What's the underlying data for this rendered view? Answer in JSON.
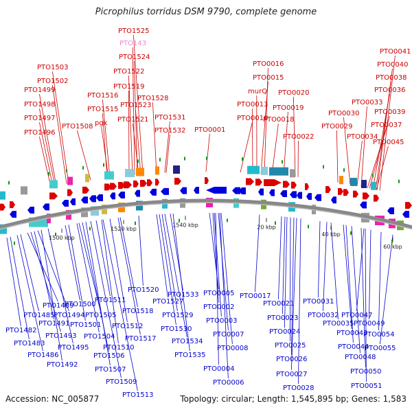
{
  "title": "Picrophilus torridus DSM 9790, complete genome",
  "footer": {
    "accession": "Accession: NC_005877",
    "summary": "Topology: circular; Length: 1,545,895 bp; Genes: 1,583"
  },
  "colors": {
    "forward": "#dd0000",
    "reverse": "#0000dd",
    "highlight": "#ee88cc",
    "backbone": "#888888"
  },
  "scale_labels": [
    "1500 kbp",
    "1520 kbp",
    "1540 kbp",
    "20 kbp",
    "40 kbp",
    "60 kbp"
  ],
  "top_labels": [
    "PTO1525",
    "PTO143",
    "PTO1524",
    "PTO1522",
    "PTO1519",
    "PTO1523",
    "PTO1521",
    "PTO1528",
    "PTO1503",
    "PTO1502",
    "PTO1499",
    "PTO1498",
    "PTO1497",
    "PTO1496",
    "PTO1516",
    "PTO1515",
    "pgk",
    "PTO1508",
    "PTO1531",
    "PTO1532",
    "PTO0001",
    "PTO0016",
    "PTO0015",
    "murQ",
    "PTO0013",
    "PTO0010",
    "PTO0018",
    "PTO0020",
    "PTO0019",
    "PTO0022",
    "PTO0041",
    "PTO0040",
    "PTO0038",
    "PTO0036",
    "PTO0033",
    "PTO0030",
    "PTO0039",
    "PTO0029",
    "PTO0037",
    "PTO0034",
    "PTO0045"
  ],
  "bottom_labels": [
    "PTO1489",
    "PTO1485",
    "PTO1482",
    "PTO1483",
    "PTO1486",
    "PTO1494",
    "PTO1491",
    "PTO1493",
    "PTO1492",
    "PTO1495",
    "PTO1500",
    "PTO1501",
    "PTO1505",
    "PTO1504",
    "PTO1506",
    "PTO1507",
    "PTO1509",
    "PTO1513",
    "PTO1511",
    "PTO1512",
    "PTO1510",
    "PTO1518",
    "PTO1517",
    "PTO1520",
    "PTO1527",
    "PTO1529",
    "PTO1530",
    "PTO1533",
    "PTO1534",
    "PTO1535",
    "PTO0005",
    "PTO0002",
    "PTO0003",
    "PTO0007",
    "PTO0008",
    "PTO0004",
    "PTO0006",
    "PTO0017",
    "PTO0021",
    "PTO0023",
    "PTO0024",
    "PTO0025",
    "PTO0026",
    "PTO0027",
    "PTO0028",
    "PTO0031",
    "PTO0032",
    "PTO0035",
    "PTO0047",
    "PTO0049",
    "PTO0043",
    "PTO0044",
    "PTO0048",
    "PTO0054",
    "PTO0055",
    "PTO0050",
    "PTO0051"
  ]
}
